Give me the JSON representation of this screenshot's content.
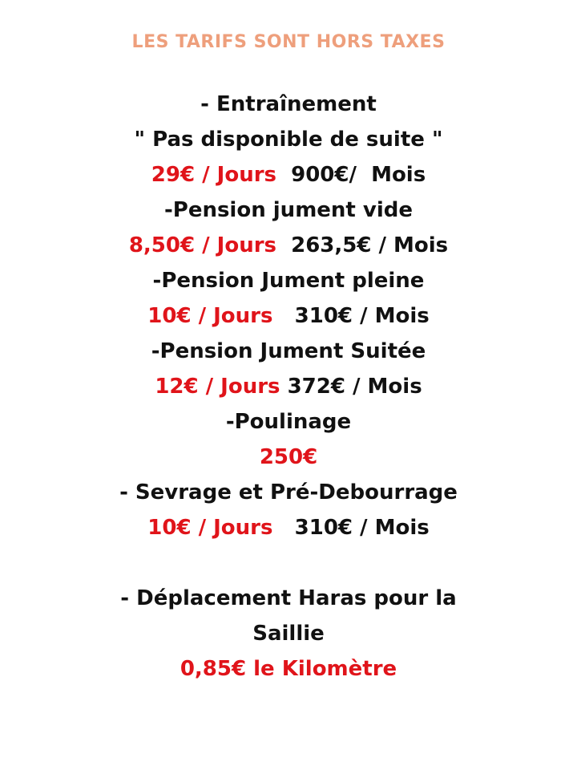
{
  "title": "LES TARIFS SONT HORS TAXES",
  "colors": {
    "title": "#ee9f7c",
    "price": "#e0141a",
    "text": "#111111"
  },
  "lines": [
    {
      "black": "- Entraînement"
    },
    {
      "black": "\" Pas disponible de suite \""
    },
    {
      "red": "29€ / Jours",
      "black": "  900€/  Mois"
    },
    {
      "black": "-Pension jument vide"
    },
    {
      "red": "8,50€ / Jours",
      "black": "  263,5€ / Mois"
    },
    {
      "black": "-Pension Jument pleine"
    },
    {
      "red": "10€ / Jours",
      "black": "   310€ / Mois"
    },
    {
      "black": "-Pension Jument Suitée"
    },
    {
      "red": "12€ / Jours",
      "black": " 372€ / Mois"
    },
    {
      "black": "-Poulinage"
    },
    {
      "red": "250€"
    },
    {
      "black": "- Sevrage et Pré-Debourrage"
    },
    {
      "red": "10€ / Jours",
      "black": "   310€ / Mois"
    },
    {},
    {
      "black": "- Déplacement Haras pour la"
    },
    {
      "black": "Saillie"
    },
    {
      "red": "0,85€ le Kilomètre"
    }
  ]
}
